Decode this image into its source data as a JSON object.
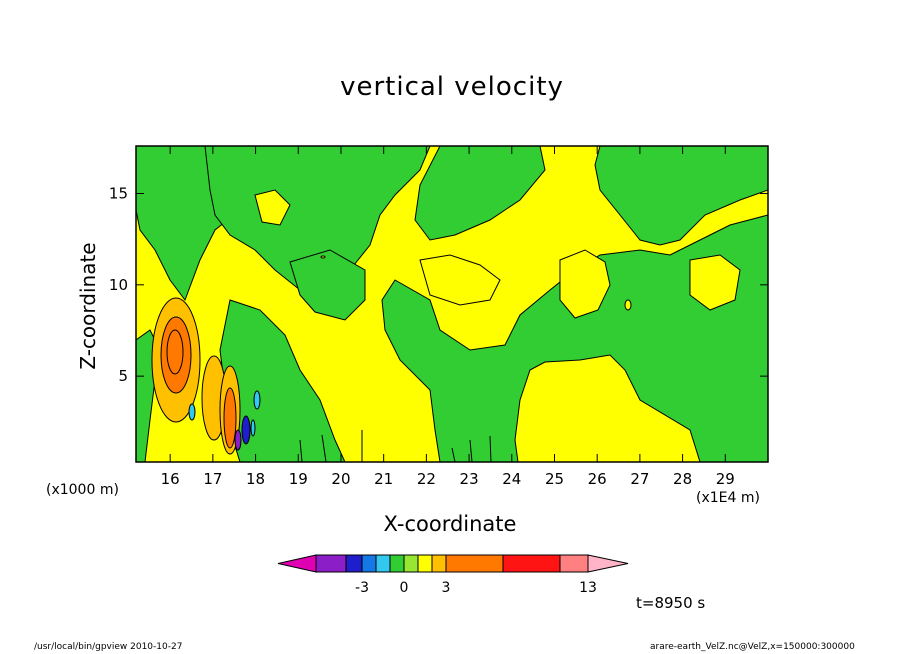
{
  "title": "vertical velocity",
  "chart_data": {
    "type": "heatmap",
    "title": "vertical velocity",
    "xlabel": "X-coordinate",
    "ylabel": "Z-coordinate",
    "x_unit": "(x1E4 m)",
    "y_unit": "(x1000 m)",
    "xlim": [
      15.2,
      30.0
    ],
    "ylim": [
      0.3,
      17.6
    ],
    "x_ticks": [
      16,
      17,
      18,
      19,
      20,
      21,
      22,
      23,
      24,
      25,
      26,
      27,
      28,
      29
    ],
    "y_ticks": [
      5,
      10,
      15
    ],
    "colorbar": {
      "levels": [
        -5,
        -4,
        -3,
        -2,
        -1,
        0,
        1,
        2,
        3,
        6,
        9,
        13
      ],
      "tick_labels": [
        "-3",
        "0",
        "3",
        "13"
      ],
      "colors": [
        "#e000b4",
        "#8c1ec8",
        "#1e1ecd",
        "#1478e6",
        "#32c8f0",
        "#32cd32",
        "#96e632",
        "#ffff00",
        "#ffc000",
        "#ff7800",
        "#ff1414",
        "#ff8080",
        "#ffb4c8"
      ]
    },
    "time_label": "t=8950 s"
  },
  "footer": {
    "left": "/usr/local/bin/gpview   2010-10-27",
    "right": "arare-earth_VelZ.nc@VelZ,x=150000:300000"
  }
}
